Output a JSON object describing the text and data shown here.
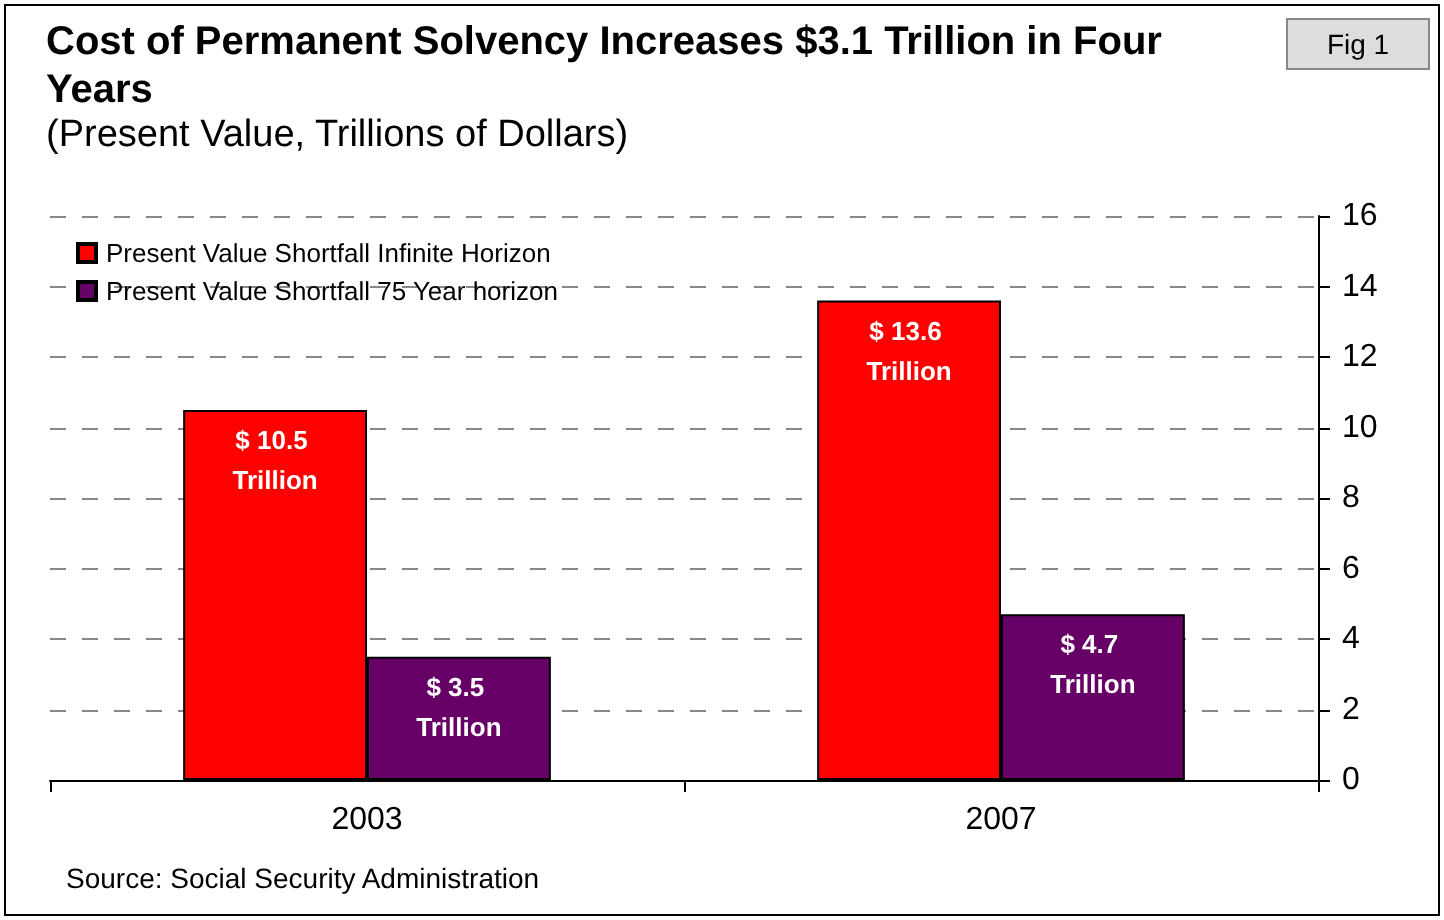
{
  "chart_data": {
    "type": "bar",
    "title": "Cost of Permanent Solvency Increases $3.1 Trillion in Four Years",
    "subtitle": "(Present Value, Trillions of Dollars)",
    "annotations": [
      "Fig 1",
      "Source: Social Security Administration"
    ],
    "categories": [
      "2003",
      "2007"
    ],
    "series": [
      {
        "name": "Present Value Shortfall Infinite Horizon",
        "color": "#ff0000",
        "values": [
          10.5,
          13.6
        ],
        "value_labels": [
          "$ 10.5 Trillion",
          "$ 13.6 Trillion"
        ]
      },
      {
        "name": "Present Value Shortfall 75 Year horizon",
        "color": "#660066",
        "values": [
          3.5,
          4.7
        ],
        "value_labels": [
          "$ 3.5 Trillion",
          "$ 4.7 Trillion"
        ]
      }
    ],
    "ylim": [
      0,
      16
    ],
    "yticks": [
      0,
      2,
      4,
      6,
      8,
      10,
      12,
      14,
      16
    ],
    "grid": "y",
    "legend": "top left"
  }
}
